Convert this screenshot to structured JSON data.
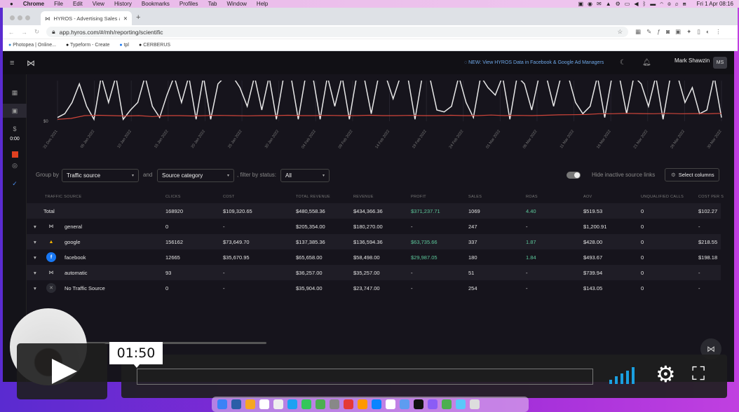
{
  "menubar": {
    "apple": "",
    "app": "Chrome",
    "items": [
      "File",
      "Edit",
      "View",
      "History",
      "Bookmarks",
      "Profiles",
      "Tab",
      "Window",
      "Help"
    ],
    "clock": "Fri 1 Apr  08:16"
  },
  "browser": {
    "tab_title": "HYROS - Advertising Sales & A",
    "url": "app.hyros.com/#/mh/reporting/scientific",
    "bookmarks": [
      "Photopea | Online...",
      "Typeform - Create",
      "tpl",
      "CERBERUS"
    ]
  },
  "header": {
    "announcement": "NEW: View HYROS Data in Facebook & Google Ad Managers",
    "user_name": "Mark Shawzin",
    "user_initials": "MS"
  },
  "sidebar": {
    "timer": "0:00"
  },
  "chart_data": {
    "type": "line",
    "y_tick": "$0",
    "x_ticks": [
      "31 Dec 2021",
      "05 Jan 2022",
      "10 Jan 2022",
      "15 Jan 2022",
      "20 Jan 2022",
      "25 Jan 2022",
      "30 Jan 2022",
      "04 Feb 2022",
      "09 Feb 2022",
      "14 Feb 2022",
      "19 Feb 2022",
      "24 Feb 2022",
      "01 Mar 2022",
      "06 Mar 2022",
      "11 Mar 2022",
      "16 Mar 2022",
      "21 Mar 2022",
      "26 Mar 2022",
      "30 Mar 2022"
    ],
    "series": [
      {
        "name": "revenue",
        "color": "#e8e8e8",
        "values": [
          2,
          4,
          10,
          20,
          8,
          1,
          24,
          10,
          24,
          1,
          6,
          10,
          24,
          8,
          2,
          14,
          24,
          10,
          24,
          1,
          24,
          1,
          20,
          24,
          24,
          18,
          8,
          24,
          6,
          24,
          1,
          24,
          24,
          1,
          24,
          24,
          1,
          24,
          8,
          24,
          1,
          24,
          24,
          4,
          24,
          24,
          12,
          24,
          24,
          1,
          24,
          24,
          6,
          5,
          8,
          24,
          10,
          2,
          24,
          18,
          14,
          24,
          1,
          24,
          20,
          6,
          24,
          24,
          8,
          24,
          24,
          10,
          4,
          8,
          24,
          2,
          24,
          24,
          4,
          24,
          20,
          8,
          24,
          1,
          24,
          24,
          10,
          18,
          4,
          6,
          24,
          2
        ]
      },
      {
        "name": "cost",
        "color": "#d0453a",
        "values": [
          1,
          1.5,
          3,
          3.2,
          3,
          2.8,
          3,
          2.5,
          3,
          3,
          2.8,
          3,
          3.1,
          3,
          2.9,
          3,
          3,
          3.2,
          3,
          3,
          3.1,
          3,
          3,
          3.2,
          3,
          3,
          3.1,
          3,
          3,
          3.2,
          3,
          3,
          3.3,
          3,
          3.1,
          3,
          3.2,
          3.4,
          3.5,
          3.6,
          4,
          4,
          4.2,
          4.1,
          4,
          4.2,
          4,
          4.1,
          4,
          4.2
        ]
      }
    ]
  },
  "controls": {
    "group_by_label": "Group by",
    "group_by": "Traffic source",
    "and_label": "and",
    "second_group": "Source category",
    "filter_label": ", filter by status:",
    "status": "All",
    "hide_inactive": "Hide inactive source links",
    "hide_inactive_on": true,
    "select_columns": "Select columns"
  },
  "table": {
    "headers": [
      "TRAFFIC SOURCE",
      "CLICKS",
      "COST",
      "TOTAL REVENUE",
      "REVENUE",
      "PROFIT",
      "SALES",
      "ROAS",
      "AOV",
      "UNQUALIFIED CALLS",
      "COST PER S"
    ],
    "total": {
      "name": "Total",
      "cells": [
        "168920",
        "$109,320.65",
        "$480,558.36",
        "$434,366.36",
        "$371,237.71",
        "1069",
        "4.40",
        "$519.53",
        "0",
        "$102.27"
      ]
    },
    "rows": [
      {
        "name": "general",
        "icon": "hyros-icon",
        "cells": [
          "0",
          "-",
          "$205,354.00",
          "$180,270.00",
          "-",
          "247",
          "-",
          "$1,200.91",
          "0",
          "-"
        ]
      },
      {
        "name": "google",
        "icon": "google-ads-icon",
        "cells": [
          "156162",
          "$73,649.70",
          "$137,385.36",
          "$136,594.36",
          "$63,735.66",
          "337",
          "1.87",
          "$428.00",
          "0",
          "$218.55"
        ]
      },
      {
        "name": "facebook",
        "icon": "facebook-icon",
        "cells": [
          "12665",
          "$35,670.95",
          "$65,658.00",
          "$58,498.00",
          "$29,987.05",
          "180",
          "1.84",
          "$493.67",
          "0",
          "$198.18"
        ]
      },
      {
        "name": "automatic",
        "icon": "hyros-icon",
        "cells": [
          "93",
          "-",
          "$36,257.00",
          "$35,257.00",
          "-",
          "51",
          "-",
          "$739.94",
          "0",
          "-"
        ]
      },
      {
        "name": "No Traffic Source",
        "icon": "x-icon",
        "cells": [
          "0",
          "-",
          "$35,904.00",
          "$23,747.00",
          "-",
          "254",
          "-",
          "$143.05",
          "0",
          "-"
        ]
      }
    ]
  },
  "video": {
    "time": "01:50",
    "progress": 0
  }
}
